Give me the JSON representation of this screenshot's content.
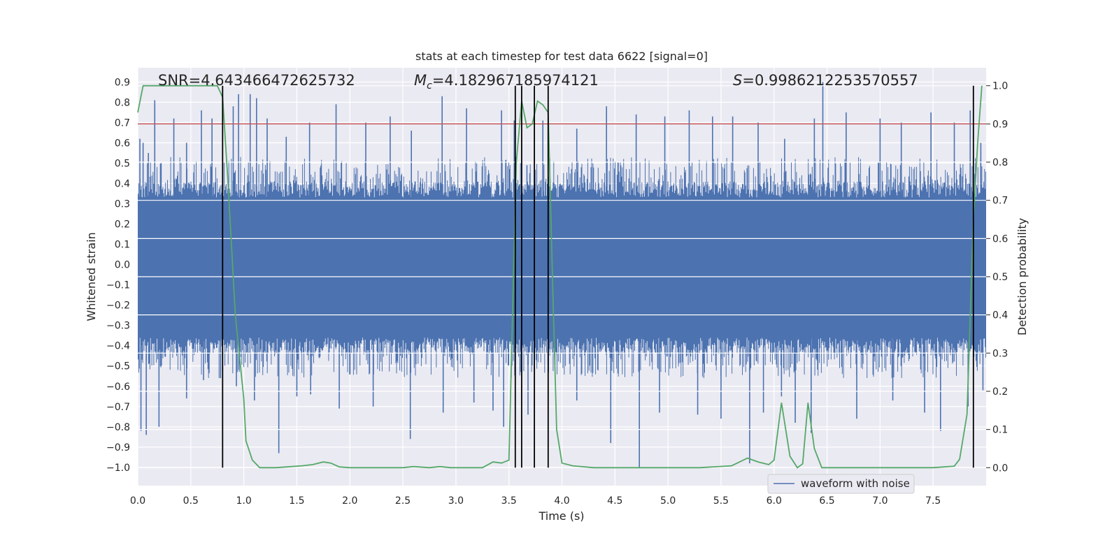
{
  "chart_data": {
    "type": "line",
    "title": "stats at each timestep for test data 6622 [signal=0]",
    "xlabel": "Time (s)",
    "ylabel_left": "Whitened strain",
    "ylabel_right": "Detection probability",
    "xlim": [
      0.0,
      8.0
    ],
    "ylim_left": [
      -1.09,
      0.97
    ],
    "ylim_right": [
      -0.047,
      1.047
    ],
    "x_ticks": [
      "0.0",
      "0.5",
      "1.0",
      "1.5",
      "2.0",
      "2.5",
      "3.0",
      "3.5",
      "4.0",
      "4.5",
      "5.0",
      "5.5",
      "6.0",
      "6.5",
      "7.0",
      "7.5"
    ],
    "y_left_ticks": [
      "0.9",
      "0.8",
      "0.7",
      "0.6",
      "0.5",
      "0.4",
      "0.3",
      "0.2",
      "0.1",
      "0.0",
      "−0.1",
      "−0.2",
      "−0.3",
      "−0.4",
      "−0.5",
      "−0.6",
      "−0.7",
      "−0.8",
      "−0.9",
      "−1.0"
    ],
    "y_right_ticks": [
      "1.0",
      "0.9",
      "0.8",
      "0.7",
      "0.6",
      "0.5",
      "0.4",
      "0.3",
      "0.2",
      "0.1",
      "0.0"
    ],
    "grid": true,
    "legend": {
      "entries": [
        "waveform with noise"
      ],
      "position": "lower-right"
    },
    "annotations": {
      "snr": "SNR=4.643466472625732",
      "mc_symbol": "M",
      "mc_sub": "c",
      "mc_value": "=4.182967185974121",
      "s_symbol": "S",
      "s_value": "=0.9986212253570557"
    },
    "threshold": {
      "value": 0.9,
      "axis": "right",
      "color": "#c44e52"
    },
    "vertical_lines": [
      0.8,
      3.56,
      3.62,
      3.74,
      3.87,
      7.88
    ],
    "series": [
      {
        "name": "waveform with noise",
        "axis": "left",
        "color": "#4c72b0",
        "band_low": -0.36,
        "band_high": 0.33,
        "spikes": [
          [
            0.02,
            0.62
          ],
          [
            0.05,
            0.6
          ],
          [
            0.1,
            0.55
          ],
          [
            0.16,
            0.81
          ],
          [
            0.22,
            0.5
          ],
          [
            0.34,
            0.72
          ],
          [
            0.46,
            0.6
          ],
          [
            0.6,
            0.76
          ],
          [
            0.7,
            0.72
          ],
          [
            0.9,
            0.78
          ],
          [
            0.95,
            0.84
          ],
          [
            1.06,
            0.84
          ],
          [
            1.12,
            0.82
          ],
          [
            1.22,
            0.72
          ],
          [
            1.4,
            0.63
          ],
          [
            1.62,
            0.7
          ],
          [
            1.87,
            0.79
          ],
          [
            2.15,
            0.7
          ],
          [
            2.38,
            0.73
          ],
          [
            2.58,
            0.66
          ],
          [
            2.87,
            0.83
          ],
          [
            3.1,
            0.77
          ],
          [
            3.43,
            0.76
          ],
          [
            3.55,
            0.71
          ],
          [
            3.67,
            0.49
          ],
          [
            3.82,
            0.71
          ],
          [
            4.14,
            0.67
          ],
          [
            4.42,
            0.78
          ],
          [
            4.7,
            0.74
          ],
          [
            4.97,
            0.73
          ],
          [
            5.2,
            0.76
          ],
          [
            5.42,
            0.73
          ],
          [
            5.61,
            0.73
          ],
          [
            5.85,
            0.7
          ],
          [
            6.1,
            0.62
          ],
          [
            6.38,
            0.72
          ],
          [
            6.46,
            0.9
          ],
          [
            6.68,
            0.75
          ],
          [
            7.0,
            0.72
          ],
          [
            7.2,
            0.7
          ],
          [
            7.48,
            0.75
          ],
          [
            7.7,
            0.7
          ],
          [
            7.85,
            0.76
          ],
          [
            7.95,
            0.6
          ],
          [
            0.03,
            -0.82
          ],
          [
            0.08,
            -0.84
          ],
          [
            0.2,
            -0.8
          ],
          [
            0.46,
            -0.66
          ],
          [
            0.62,
            -0.57
          ],
          [
            0.78,
            -0.56
          ],
          [
            0.93,
            -0.6
          ],
          [
            1.1,
            -0.67
          ],
          [
            1.33,
            -0.93
          ],
          [
            1.5,
            -0.65
          ],
          [
            1.63,
            -0.64
          ],
          [
            1.9,
            -0.71
          ],
          [
            2.22,
            -0.7
          ],
          [
            2.57,
            -0.86
          ],
          [
            2.88,
            -0.73
          ],
          [
            3.17,
            -0.68
          ],
          [
            3.35,
            -0.72
          ],
          [
            3.45,
            -0.8
          ],
          [
            3.68,
            -0.74
          ],
          [
            4.14,
            -0.67
          ],
          [
            4.46,
            -0.88
          ],
          [
            4.73,
            -1.0
          ],
          [
            4.92,
            -0.73
          ],
          [
            5.28,
            -0.74
          ],
          [
            5.5,
            -0.76
          ],
          [
            5.77,
            -0.98
          ],
          [
            5.9,
            -0.73
          ],
          [
            6.07,
            -0.65
          ],
          [
            6.2,
            -0.78
          ],
          [
            6.35,
            -0.83
          ],
          [
            6.78,
            -0.76
          ],
          [
            7.12,
            -0.67
          ],
          [
            7.42,
            -0.73
          ],
          [
            7.57,
            -0.82
          ],
          [
            7.83,
            -0.7
          ],
          [
            7.97,
            -0.62
          ]
        ]
      },
      {
        "name": "detection probability",
        "axis": "right",
        "color": "#55a868",
        "x": [
          0.0,
          0.05,
          0.1,
          0.2,
          0.4,
          0.6,
          0.75,
          0.8,
          0.85,
          0.92,
          1.0,
          1.02,
          1.08,
          1.15,
          1.3,
          1.45,
          1.55,
          1.65,
          1.75,
          1.82,
          1.9,
          2.0,
          2.2,
          2.5,
          2.6,
          2.75,
          2.85,
          2.95,
          3.1,
          3.25,
          3.35,
          3.43,
          3.5,
          3.57,
          3.62,
          3.67,
          3.72,
          3.77,
          3.82,
          3.87,
          3.92,
          3.95,
          4.0,
          4.1,
          4.3,
          4.5,
          4.9,
          5.3,
          5.6,
          5.75,
          5.85,
          5.95,
          6.0,
          6.07,
          6.15,
          6.22,
          6.27,
          6.32,
          6.38,
          6.45,
          6.6,
          7.0,
          7.3,
          7.5,
          7.7,
          7.75,
          7.82,
          7.88,
          7.92,
          7.96
        ],
        "y": [
          0.93,
          1.0,
          1.0,
          1.0,
          1.0,
          1.0,
          1.0,
          0.97,
          0.75,
          0.4,
          0.18,
          0.07,
          0.02,
          0.0,
          0.0,
          0.003,
          0.005,
          0.008,
          0.015,
          0.012,
          0.002,
          0.0,
          0.0,
          0.0,
          0.003,
          0.0,
          0.003,
          0.0,
          0.0,
          0.0,
          0.015,
          0.012,
          0.02,
          0.8,
          0.96,
          0.89,
          0.9,
          0.96,
          0.95,
          0.93,
          0.4,
          0.1,
          0.012,
          0.005,
          0.0,
          0.0,
          0.0,
          0.0,
          0.005,
          0.025,
          0.015,
          0.008,
          0.02,
          0.17,
          0.03,
          0.0,
          0.01,
          0.17,
          0.05,
          0.0,
          0.0,
          0.0,
          0.0,
          0.0,
          0.004,
          0.022,
          0.14,
          0.65,
          0.85,
          1.0
        ]
      }
    ]
  }
}
